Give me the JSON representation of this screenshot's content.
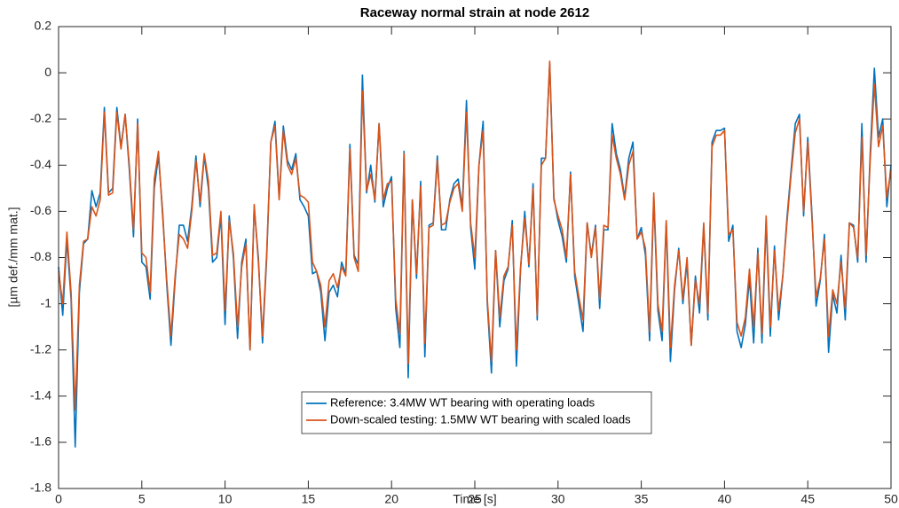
{
  "chart_data": {
    "type": "line",
    "title": "Raceway normal strain at node 2612",
    "x_label": "Time [s]",
    "y_label": "[µm def./mm mat.]",
    "x": [
      0,
      0.25,
      0.5,
      0.75,
      1,
      1.25,
      1.5,
      1.75,
      2,
      2.25,
      2.5,
      2.75,
      3,
      3.25,
      3.5,
      3.75,
      4,
      4.25,
      4.5,
      4.75,
      5,
      5.25,
      5.5,
      5.75,
      6,
      6.25,
      6.5,
      6.75,
      7,
      7.25,
      7.5,
      7.75,
      8,
      8.25,
      8.5,
      8.75,
      9,
      9.25,
      9.5,
      9.75,
      10,
      10.25,
      10.5,
      10.75,
      11,
      11.25,
      11.5,
      11.75,
      12,
      12.25,
      12.5,
      12.75,
      13,
      13.25,
      13.5,
      13.75,
      14,
      14.25,
      14.5,
      14.75,
      15,
      15.25,
      15.5,
      15.75,
      16,
      16.25,
      16.5,
      16.75,
      17,
      17.25,
      17.5,
      17.75,
      18,
      18.25,
      18.5,
      18.75,
      19,
      19.25,
      19.5,
      19.75,
      20,
      20.25,
      20.5,
      20.75,
      21,
      21.25,
      21.5,
      21.75,
      22,
      22.25,
      22.5,
      22.75,
      23,
      23.25,
      23.5,
      23.75,
      24,
      24.25,
      24.5,
      24.75,
      25,
      25.25,
      25.5,
      25.75,
      26,
      26.25,
      26.5,
      26.75,
      27,
      27.25,
      27.5,
      27.75,
      28,
      28.25,
      28.5,
      28.75,
      29,
      29.25,
      29.5,
      29.75,
      30,
      30.25,
      30.5,
      30.75,
      31,
      31.25,
      31.5,
      31.75,
      32,
      32.25,
      32.5,
      32.75,
      33,
      33.25,
      33.5,
      33.75,
      34,
      34.25,
      34.5,
      34.75,
      35,
      35.25,
      35.5,
      35.75,
      36,
      36.25,
      36.5,
      36.75,
      37,
      37.25,
      37.5,
      37.75,
      38,
      38.25,
      38.5,
      38.75,
      39,
      39.25,
      39.5,
      39.75,
      40,
      40.25,
      40.5,
      40.75,
      41,
      41.25,
      41.5,
      41.75,
      42,
      42.25,
      42.5,
      42.75,
      43,
      43.25,
      43.5,
      43.75,
      44,
      44.25,
      44.5,
      44.75,
      45,
      45.25,
      45.5,
      45.75,
      46,
      46.25,
      46.5,
      46.75,
      47,
      47.25,
      47.5,
      47.75,
      48,
      48.25,
      48.5,
      48.75,
      49,
      49.25,
      49.5,
      49.75,
      50
    ],
    "series": [
      {
        "name": "Reference: 3.4MW WT bearing with operating loads",
        "color": "#0072BD",
        "values": [
          -0.84,
          -1.05,
          -0.72,
          -0.98,
          -1.62,
          -0.95,
          -0.74,
          -0.72,
          -0.51,
          -0.58,
          -0.52,
          -0.15,
          -0.52,
          -0.5,
          -0.15,
          -0.32,
          -0.18,
          -0.42,
          -0.71,
          -0.2,
          -0.82,
          -0.84,
          -0.98,
          -0.5,
          -0.36,
          -0.6,
          -0.92,
          -1.18,
          -0.9,
          -0.66,
          -0.66,
          -0.73,
          -0.58,
          -0.36,
          -0.58,
          -0.36,
          -0.5,
          -0.82,
          -0.8,
          -0.62,
          -1.09,
          -0.62,
          -0.8,
          -1.15,
          -0.82,
          -0.72,
          -1.2,
          -0.58,
          -0.8,
          -1.17,
          -0.8,
          -0.3,
          -0.21,
          -0.54,
          -0.23,
          -0.38,
          -0.42,
          -0.35,
          -0.55,
          -0.58,
          -0.62,
          -0.87,
          -0.86,
          -0.95,
          -1.16,
          -0.95,
          -0.92,
          -0.97,
          -0.82,
          -0.87,
          -0.31,
          -0.79,
          -0.83,
          -0.01,
          -0.52,
          -0.4,
          -0.56,
          -0.22,
          -0.58,
          -0.5,
          -0.45,
          -1.02,
          -1.19,
          -0.34,
          -1.32,
          -0.55,
          -0.89,
          -0.47,
          -1.23,
          -0.66,
          -0.65,
          -0.36,
          -0.68,
          -0.68,
          -0.55,
          -0.48,
          -0.46,
          -0.58,
          -0.12,
          -0.67,
          -0.85,
          -0.4,
          -0.21,
          -1.0,
          -1.3,
          -0.77,
          -1.1,
          -0.9,
          -0.85,
          -0.64,
          -1.27,
          -0.85,
          -0.6,
          -0.84,
          -0.48,
          -1.07,
          -0.37,
          -0.37,
          0.04,
          -0.54,
          -0.64,
          -0.71,
          -0.82,
          -0.43,
          -0.88,
          -1.0,
          -1.12,
          -0.65,
          -0.79,
          -0.66,
          -1.02,
          -0.68,
          -0.68,
          -0.22,
          -0.35,
          -0.42,
          -0.54,
          -0.37,
          -0.3,
          -0.72,
          -0.67,
          -0.79,
          -1.16,
          -0.54,
          -1.03,
          -1.16,
          -0.65,
          -1.25,
          -0.94,
          -0.76,
          -1.0,
          -0.82,
          -1.18,
          -0.88,
          -1.04,
          -0.66,
          -1.07,
          -0.3,
          -0.25,
          -0.25,
          -0.24,
          -0.73,
          -0.66,
          -1.12,
          -1.19,
          -1.09,
          -0.89,
          -1.17,
          -0.76,
          -1.17,
          -0.64,
          -1.14,
          -0.75,
          -1.07,
          -0.88,
          -0.63,
          -0.42,
          -0.22,
          -0.18,
          -0.62,
          -0.28,
          -0.61,
          -1.01,
          -0.9,
          -0.7,
          -1.21,
          -0.96,
          -1.04,
          -0.79,
          -1.07,
          -0.65,
          -0.66,
          -0.82,
          -0.22,
          -0.82,
          -0.35,
          0.02,
          -0.28,
          -0.2,
          -0.58,
          -0.4
        ]
      },
      {
        "name": "Down-scaled testing: 1.5MW WT bearing with scaled loads",
        "color": "#D95319",
        "values": [
          -0.86,
          -1.0,
          -0.69,
          -0.95,
          -1.46,
          -0.92,
          -0.73,
          -0.72,
          -0.58,
          -0.62,
          -0.55,
          -0.17,
          -0.53,
          -0.52,
          -0.17,
          -0.33,
          -0.18,
          -0.4,
          -0.68,
          -0.22,
          -0.78,
          -0.8,
          -0.95,
          -0.46,
          -0.34,
          -0.62,
          -0.9,
          -1.14,
          -0.88,
          -0.7,
          -0.72,
          -0.76,
          -0.6,
          -0.38,
          -0.56,
          -0.35,
          -0.47,
          -0.79,
          -0.78,
          -0.6,
          -1.03,
          -0.64,
          -0.78,
          -1.1,
          -0.84,
          -0.74,
          -1.2,
          -0.57,
          -0.82,
          -1.14,
          -0.78,
          -0.3,
          -0.23,
          -0.55,
          -0.25,
          -0.4,
          -0.44,
          -0.37,
          -0.53,
          -0.54,
          -0.56,
          -0.82,
          -0.86,
          -0.92,
          -1.1,
          -0.9,
          -0.87,
          -0.93,
          -0.84,
          -0.88,
          -0.33,
          -0.8,
          -0.86,
          -0.08,
          -0.51,
          -0.44,
          -0.55,
          -0.22,
          -0.55,
          -0.48,
          -0.47,
          -0.98,
          -1.13,
          -0.35,
          -1.26,
          -0.55,
          -0.87,
          -0.49,
          -1.17,
          -0.67,
          -0.66,
          -0.38,
          -0.66,
          -0.65,
          -0.56,
          -0.5,
          -0.48,
          -0.6,
          -0.17,
          -0.65,
          -0.8,
          -0.4,
          -0.25,
          -0.98,
          -1.25,
          -0.77,
          -1.06,
          -0.88,
          -0.84,
          -0.66,
          -1.2,
          -0.84,
          -0.63,
          -0.83,
          -0.5,
          -1.05,
          -0.4,
          -0.37,
          0.05,
          -0.55,
          -0.62,
          -0.68,
          -0.8,
          -0.44,
          -0.86,
          -0.97,
          -1.07,
          -0.65,
          -0.8,
          -0.67,
          -0.98,
          -0.66,
          -0.67,
          -0.27,
          -0.37,
          -0.44,
          -0.55,
          -0.4,
          -0.34,
          -0.72,
          -0.69,
          -0.76,
          -1.12,
          -0.52,
          -1.0,
          -1.12,
          -0.64,
          -1.19,
          -0.92,
          -0.77,
          -0.98,
          -0.8,
          -1.18,
          -0.9,
          -1.0,
          -0.65,
          -1.04,
          -0.32,
          -0.27,
          -0.27,
          -0.25,
          -0.7,
          -0.68,
          -1.08,
          -1.14,
          -1.06,
          -0.85,
          -1.1,
          -0.78,
          -1.13,
          -0.62,
          -1.1,
          -0.77,
          -1.03,
          -0.88,
          -0.65,
          -0.44,
          -0.26,
          -0.2,
          -0.6,
          -0.3,
          -0.63,
          -0.97,
          -0.89,
          -0.72,
          -1.14,
          -0.94,
          -1.0,
          -0.82,
          -1.02,
          -0.65,
          -0.67,
          -0.8,
          -0.28,
          -0.79,
          -0.38,
          -0.05,
          -0.32,
          -0.23,
          -0.54,
          -0.42
        ]
      }
    ],
    "xlim": [
      0,
      50
    ],
    "xticks": [
      0,
      5,
      10,
      15,
      20,
      25,
      30,
      35,
      40,
      45,
      50
    ],
    "ylim": [
      -1.8,
      0.2
    ],
    "yticks": [
      -1.8,
      -1.6,
      -1.4,
      -1.2,
      -1,
      -0.8,
      -0.6,
      -0.4,
      -0.2,
      0,
      0.2
    ],
    "grid": false,
    "legend": "lower-center"
  }
}
